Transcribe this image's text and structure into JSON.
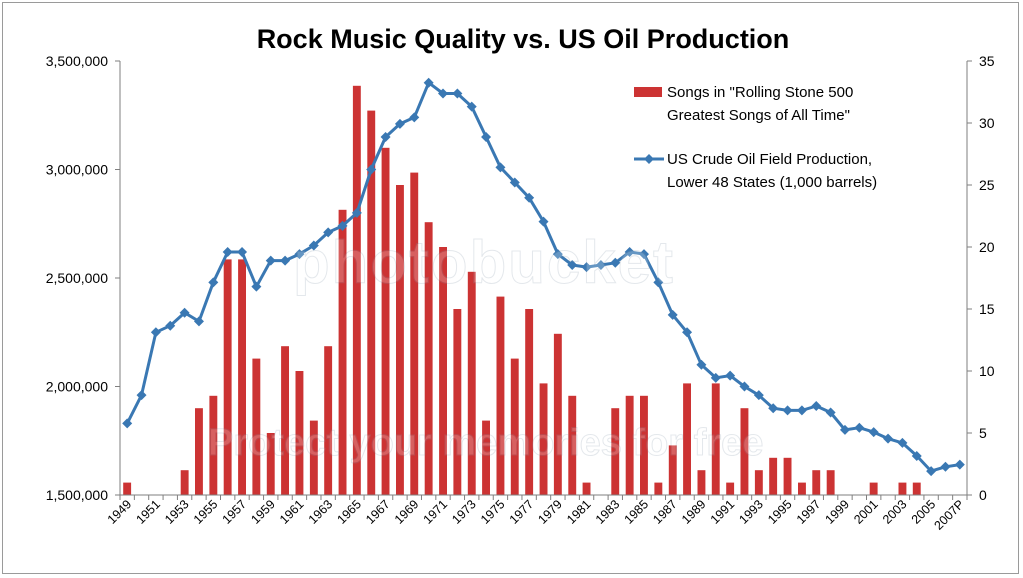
{
  "chart_data": {
    "type": "bar+line",
    "title": "Rock Music Quality vs. US Oil Production",
    "colors": {
      "bars": "#cc3333",
      "line": "#3a78b3",
      "marker": "#3a78b3"
    },
    "categories": [
      "1949",
      "1950",
      "1951",
      "1952",
      "1953",
      "1954",
      "1955",
      "1956",
      "1957",
      "1958",
      "1959",
      "1960",
      "1961",
      "1962",
      "1963",
      "1964",
      "1965",
      "1966",
      "1967",
      "1968",
      "1969",
      "1970",
      "1971",
      "1972",
      "1973",
      "1974",
      "1975",
      "1976",
      "1977",
      "1978",
      "1979",
      "1980",
      "1981",
      "1982",
      "1983",
      "1984",
      "1985",
      "1986",
      "1987",
      "1988",
      "1989",
      "1990",
      "1991",
      "1992",
      "1993",
      "1994",
      "1995",
      "1996",
      "1997",
      "1998",
      "1999",
      "2000",
      "2001",
      "2002",
      "2003",
      "2004",
      "2005",
      "2006",
      "2007P"
    ],
    "x_tick_labels": [
      "1949",
      "1951",
      "1953",
      "1955",
      "1957",
      "1959",
      "1961",
      "1963",
      "1965",
      "1967",
      "1969",
      "1971",
      "1973",
      "1975",
      "1977",
      "1979",
      "1981",
      "1983",
      "1985",
      "1987",
      "1989",
      "1991",
      "1993",
      "1995",
      "1997",
      "1999",
      "2001",
      "2003",
      "2005",
      "2007P"
    ],
    "left_axis": {
      "ylim": [
        1500000,
        3500000
      ],
      "ticks": [
        "1,500,000",
        "2,000,000",
        "2,500,000",
        "3,000,000",
        "3,500,000"
      ]
    },
    "right_axis": {
      "ylim": [
        0,
        35
      ],
      "ticks": [
        "0",
        "5",
        "10",
        "15",
        "20",
        "25",
        "30",
        "35"
      ]
    },
    "series": [
      {
        "name": "Songs in \"Rolling Stone 500 Greatest Songs of All Time\"",
        "axis": "right",
        "kind": "bar",
        "values": [
          1,
          0,
          0,
          0,
          2,
          7,
          8,
          19,
          19,
          11,
          5,
          12,
          10,
          6,
          12,
          23,
          33,
          31,
          28,
          25,
          26,
          22,
          20,
          15,
          18,
          6,
          16,
          11,
          15,
          9,
          13,
          8,
          1,
          0,
          7,
          8,
          8,
          1,
          4,
          9,
          2,
          9,
          1,
          7,
          2,
          3,
          3,
          1,
          2,
          2,
          0,
          0,
          1,
          0,
          1,
          1,
          0,
          0,
          0
        ]
      },
      {
        "name": "US Crude Oil Field Production, Lower 48 States (1,000 barrels)",
        "axis": "left",
        "kind": "line",
        "values": [
          1830000,
          1960000,
          2250000,
          2280000,
          2340000,
          2300000,
          2480000,
          2620000,
          2620000,
          2460000,
          2580000,
          2580000,
          2610000,
          2650000,
          2710000,
          2740000,
          2800000,
          3000000,
          3150000,
          3210000,
          3240000,
          3400000,
          3350000,
          3350000,
          3290000,
          3150000,
          3010000,
          2940000,
          2870000,
          2760000,
          2610000,
          2560000,
          2550000,
          2560000,
          2570000,
          2620000,
          2610000,
          2480000,
          2330000,
          2250000,
          2100000,
          2040000,
          2050000,
          2000000,
          1960000,
          1900000,
          1890000,
          1890000,
          1910000,
          1880000,
          1800000,
          1810000,
          1790000,
          1760000,
          1740000,
          1680000,
          1610000,
          1630000,
          1640000
        ]
      }
    ],
    "legend_placement": "top-right",
    "grid": false
  },
  "watermark": {
    "lines": [
      "photobucket",
      "Protect your memories for free"
    ]
  }
}
